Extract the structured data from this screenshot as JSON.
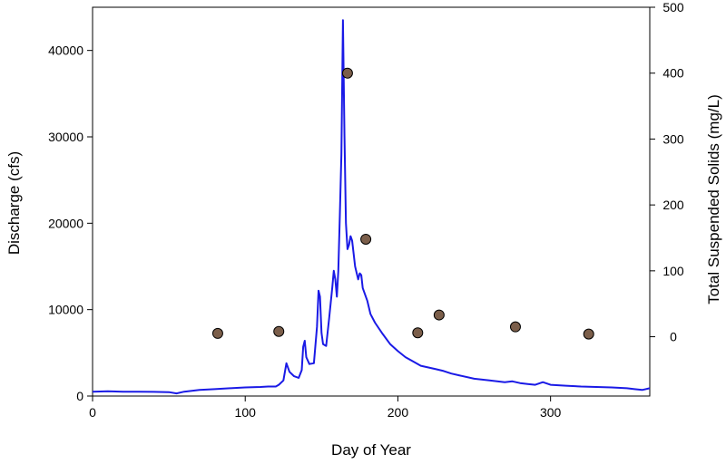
{
  "chart_data": {
    "type": "line",
    "title": "",
    "xlabel": "Day of Year",
    "ylabel": "Discharge (cfs)",
    "y2label": "Total Suspended Solids (mg/L)",
    "xlim": [
      0,
      365
    ],
    "ylim": [
      0,
      45000
    ],
    "y2lim": [
      -90,
      500
    ],
    "grid": false,
    "legend": "none",
    "x_ticks": [
      0,
      100,
      200,
      300
    ],
    "y_ticks": [
      0,
      10000,
      20000,
      30000,
      40000
    ],
    "y2_ticks": [
      0,
      100,
      200,
      300,
      400,
      500
    ],
    "series": [
      {
        "axis": "left",
        "style": "line",
        "color": "#1a1ae6",
        "x": [
          0,
          10,
          20,
          30,
          40,
          50,
          55,
          60,
          70,
          80,
          90,
          100,
          110,
          115,
          120,
          122,
          125,
          127,
          129,
          132,
          135,
          137,
          138,
          139,
          140,
          142,
          145,
          147,
          148,
          149,
          150,
          151,
          153,
          155,
          157,
          158,
          159,
          160,
          161,
          162,
          163,
          164,
          165,
          166,
          167,
          168,
          169,
          170,
          172,
          174,
          175,
          176,
          177,
          178,
          180,
          182,
          185,
          190,
          195,
          200,
          205,
          210,
          215,
          220,
          225,
          230,
          235,
          240,
          250,
          260,
          265,
          270,
          275,
          280,
          285,
          290,
          295,
          300,
          310,
          320,
          330,
          340,
          350,
          355,
          360,
          365
        ],
        "values": [
          500,
          550,
          500,
          500,
          480,
          450,
          300,
          500,
          700,
          800,
          900,
          1000,
          1050,
          1100,
          1100,
          1300,
          1800,
          3800,
          2800,
          2300,
          2100,
          3000,
          5700,
          6400,
          4500,
          3700,
          3800,
          8000,
          12200,
          11500,
          7300,
          6000,
          5800,
          9000,
          12500,
          14500,
          13500,
          11500,
          14500,
          21000,
          28000,
          43500,
          30000,
          20000,
          17000,
          17500,
          18500,
          18000,
          15000,
          13500,
          14200,
          14000,
          12500,
          12000,
          11000,
          9500,
          8500,
          7200,
          6000,
          5200,
          4500,
          4000,
          3500,
          3300,
          3100,
          2900,
          2600,
          2400,
          2000,
          1800,
          1700,
          1600,
          1700,
          1500,
          1400,
          1300,
          1600,
          1300,
          1200,
          1100,
          1050,
          1000,
          900,
          800,
          700,
          900
        ]
      },
      {
        "axis": "right",
        "style": "scatter",
        "color": "#7b5e4a",
        "x": [
          82,
          122,
          167,
          179,
          213,
          227,
          277,
          325
        ],
        "values": [
          5,
          8,
          400,
          148,
          6,
          33,
          15,
          4
        ]
      }
    ]
  }
}
